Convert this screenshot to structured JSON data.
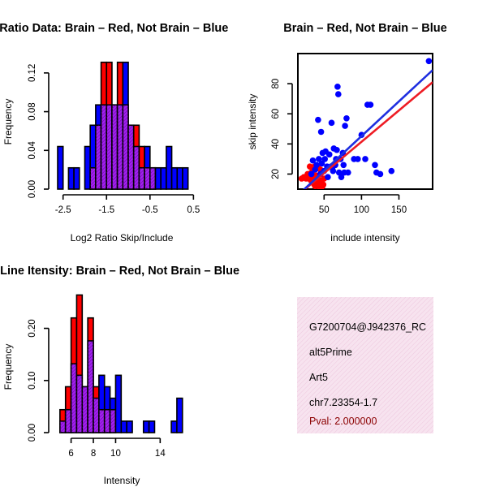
{
  "colors": {
    "brain": "#ff0000",
    "not_brain": "#0000ff",
    "overlap": "#a020f0",
    "fit_brain": "#ee1c24",
    "fit_not_brain": "#1f2fe0",
    "info_bg": "#f6dcec",
    "pval": "#8b0000"
  },
  "chart_data": [
    {
      "type": "bar",
      "title": "Log Ratio Data: Brain – Red, Not Brain – Blue",
      "xlabel": "Log2 Ratio Skip/Include",
      "ylabel": "Frequency",
      "xlim": [
        -2.7,
        0.4
      ],
      "ylim": [
        0,
        0.14
      ],
      "x_ticks": [
        -2.5,
        -1.5,
        -0.5,
        0.5
      ],
      "x_tick_labels": [
        "-2.5",
        "-1.5",
        "-0.5",
        "0.5"
      ],
      "y_ticks": [
        0,
        0.04,
        0.08,
        0.12
      ],
      "y_tick_labels": [
        "0.00",
        "0.04",
        "0.08",
        "0.12"
      ],
      "bin_width": 0.125,
      "bin_starts": [
        -2.625,
        -2.5,
        -2.375,
        -2.25,
        -2.125,
        -2.0,
        -1.875,
        -1.75,
        -1.625,
        -1.5,
        -1.375,
        -1.25,
        -1.125,
        -1.0,
        -0.875,
        -0.75,
        -0.625,
        -0.5,
        -0.375,
        -0.25,
        -0.125,
        0.0,
        0.125,
        0.25
      ],
      "series": [
        {
          "name": "Brain",
          "values": [
            0,
            0,
            0,
            0,
            0,
            0,
            0.022,
            0.066,
            0.131,
            0.131,
            0.087,
            0.131,
            0.087,
            0.066,
            0.066,
            0.044,
            0.022,
            0.022,
            0,
            0,
            0,
            0,
            0,
            0
          ]
        },
        {
          "name": "Not Brain",
          "values": [
            0.044,
            0,
            0.022,
            0.022,
            0,
            0.044,
            0.066,
            0.087,
            0.087,
            0.087,
            0.087,
            0.087,
            0.131,
            0.066,
            0.044,
            0.022,
            0.044,
            0.022,
            0.022,
            0.022,
            0.044,
            0.022,
            0.022,
            0.022
          ]
        }
      ]
    },
    {
      "type": "scatter",
      "title": "Brain – Red, Not Brain – Blue",
      "xlabel": "include intensity",
      "ylabel": "skip intensity",
      "xlim": [
        15,
        195
      ],
      "ylim": [
        10,
        100
      ],
      "x_ticks": [
        50,
        100,
        150
      ],
      "y_ticks": [
        20,
        40,
        60,
        80
      ],
      "series": [
        {
          "name": "Brain",
          "points": [
            [
              20,
              17
            ],
            [
              23,
              18
            ],
            [
              26,
              17
            ],
            [
              28,
              20
            ],
            [
              30,
              19
            ],
            [
              32,
              16
            ],
            [
              33,
              21
            ],
            [
              34,
              18
            ],
            [
              35,
              15
            ],
            [
              36,
              17
            ],
            [
              37,
              13
            ],
            [
              38,
              16
            ],
            [
              39,
              13
            ],
            [
              40,
              19
            ],
            [
              41,
              14
            ],
            [
              42,
              12
            ],
            [
              43,
              15
            ],
            [
              44,
              16
            ],
            [
              45,
              13
            ],
            [
              46,
              11
            ],
            [
              47,
              14
            ],
            [
              48,
              12
            ],
            [
              49,
              13
            ],
            [
              37,
              25
            ],
            [
              42,
              24
            ],
            [
              35,
              22
            ],
            [
              31,
              25
            ],
            [
              45,
              23
            ],
            [
              50,
              17
            ],
            [
              38,
              12
            ]
          ],
          "fit": [
            [
              15,
              6
            ],
            [
              195,
              81
            ]
          ]
        },
        {
          "name": "Not Brain",
          "points": [
            [
              33,
              20
            ],
            [
              35,
              29
            ],
            [
              38,
              23
            ],
            [
              40,
              26
            ],
            [
              42,
              56
            ],
            [
              43,
              30
            ],
            [
              45,
              20
            ],
            [
              46,
              48
            ],
            [
              47,
              27
            ],
            [
              48,
              34
            ],
            [
              50,
              22
            ],
            [
              51,
              30
            ],
            [
              52,
              35
            ],
            [
              54,
              25
            ],
            [
              55,
              18
            ],
            [
              57,
              33
            ],
            [
              59,
              25
            ],
            [
              60,
              54
            ],
            [
              61,
              24
            ],
            [
              62,
              22
            ],
            [
              63,
              37
            ],
            [
              65,
              26
            ],
            [
              66,
              30
            ],
            [
              67,
              36
            ],
            [
              68,
              78
            ],
            [
              69,
              73
            ],
            [
              70,
              21
            ],
            [
              72,
              30
            ],
            [
              73,
              18
            ],
            [
              75,
              34
            ],
            [
              76,
              26
            ],
            [
              77,
              21
            ],
            [
              78,
              52
            ],
            [
              80,
              57
            ],
            [
              82,
              21
            ],
            [
              90,
              30
            ],
            [
              95,
              30
            ],
            [
              100,
              46
            ],
            [
              105,
              30
            ],
            [
              108,
              66
            ],
            [
              112,
              66
            ],
            [
              118,
              26
            ],
            [
              120,
              21
            ],
            [
              125,
              20
            ],
            [
              140,
              22
            ],
            [
              190,
              95
            ]
          ],
          "fit": [
            [
              15,
              6
            ],
            [
              195,
              89
            ]
          ]
        }
      ]
    },
    {
      "type": "bar",
      "title": "Probe Line Itensity: Brain – Red, Not Brain – Blue",
      "xlabel": "Intensity",
      "ylabel": "Frequency",
      "xlim": [
        4.5,
        16.6
      ],
      "ylim": [
        0,
        0.26
      ],
      "x_ticks": [
        6,
        8,
        10,
        14
      ],
      "x_tick_labels": [
        "6",
        "8",
        "10",
        "14"
      ],
      "y_ticks": [
        0,
        0.1,
        0.2
      ],
      "y_tick_labels": [
        "0.00",
        "0.10",
        "0.20"
      ],
      "bin_width": 0.5,
      "bin_starts": [
        5.0,
        5.5,
        6.0,
        6.5,
        7.0,
        7.5,
        8.0,
        8.5,
        9.0,
        9.5,
        10.0,
        10.5,
        11.0,
        11.5,
        12.0,
        12.5,
        13.0,
        13.5,
        14.0,
        14.5,
        15.0,
        15.5
      ],
      "series": [
        {
          "name": "Brain",
          "values": [
            0.044,
            0.088,
            0.22,
            0.264,
            0.088,
            0.22,
            0.088,
            0.044,
            0.044,
            0.044,
            0,
            0,
            0,
            0,
            0,
            0,
            0,
            0,
            0,
            0,
            0,
            0
          ]
        },
        {
          "name": "Not Brain",
          "values": [
            0.022,
            0.044,
            0.132,
            0.11,
            0.088,
            0.176,
            0.066,
            0.11,
            0.088,
            0.066,
            0.11,
            0.022,
            0.022,
            0,
            0,
            0.022,
            0.022,
            0,
            0,
            0,
            0.022,
            0.066
          ]
        }
      ]
    }
  ],
  "info_panel": {
    "lines": [
      "G7200704@J942376_RC",
      "alt5Prime",
      "Art5",
      "chr7.23354-1.7"
    ],
    "pval": "Pval: 2.000000"
  }
}
